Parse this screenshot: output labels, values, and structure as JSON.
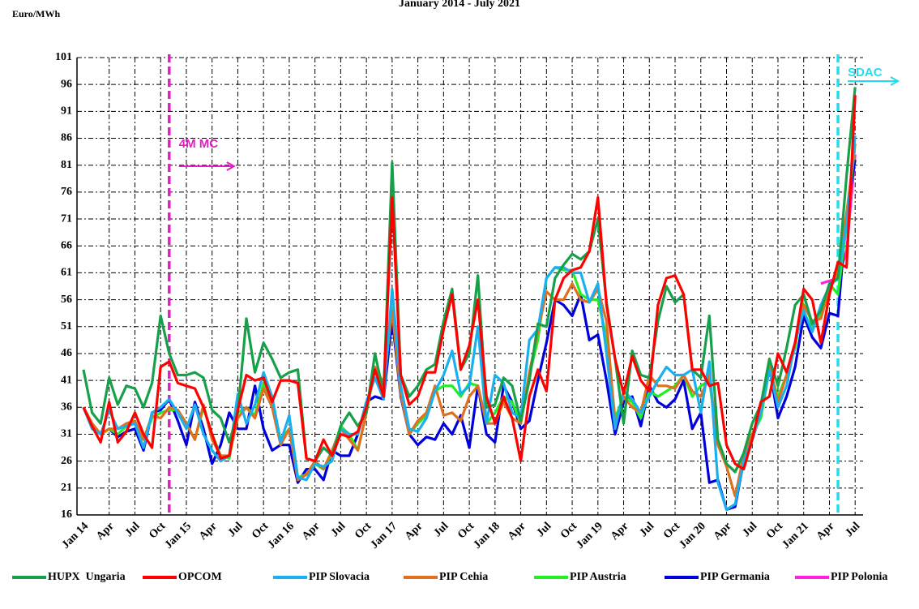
{
  "chart_data": {
    "type": "line",
    "title": "January  2014 - July  2021",
    "y_label": "Euro/MWh",
    "categories": [
      "Jan 14",
      null,
      null,
      "Apr",
      null,
      null,
      "Jul",
      null,
      null,
      "Oct",
      null,
      null,
      "Jan 15",
      null,
      null,
      "Apr",
      null,
      null,
      "Jul",
      null,
      null,
      "Oct",
      null,
      null,
      "Jan 16",
      null,
      null,
      "Apr",
      null,
      null,
      "Jul",
      null,
      null,
      "Oct",
      null,
      null,
      "Jan 17",
      null,
      null,
      "Apr",
      null,
      null,
      "Jul",
      null,
      null,
      "Oct",
      null,
      null,
      "Jan 18",
      null,
      null,
      "Apr",
      null,
      null,
      "Jul",
      null,
      null,
      "Oct",
      null,
      null,
      "Jan 19",
      null,
      null,
      "Apr",
      null,
      null,
      "Jul",
      null,
      null,
      "Oct",
      null,
      null,
      "Jan 20",
      null,
      null,
      "Apr",
      null,
      null,
      "Jul",
      null,
      null,
      "Oct",
      null,
      null,
      "Jan 21",
      null,
      null,
      "Apr",
      null,
      null,
      "Jul"
    ],
    "series": [
      {
        "name": "HUPX  Ungaria",
        "color": "#17a04a",
        "values": [
          43,
          35,
          33,
          41.5,
          36.5,
          40,
          39.5,
          36,
          40.5,
          53,
          46,
          42,
          42,
          42.5,
          41.5,
          35.5,
          34,
          29.5,
          35,
          52.5,
          42.5,
          48,
          45,
          41.5,
          42.5,
          43,
          26.5,
          26,
          28.5,
          27,
          32.5,
          35,
          32.5,
          35,
          46,
          38.5,
          81.5,
          42,
          38,
          40,
          43,
          44,
          52,
          58,
          43,
          46,
          60.5,
          36,
          36.5,
          41.5,
          40,
          33.5,
          41,
          51.5,
          51,
          60,
          62.5,
          64.5,
          63.5,
          65,
          71,
          55.5,
          45,
          33,
          46.5,
          42,
          41.5,
          52,
          58.5,
          55.5,
          57,
          43,
          41.5,
          53,
          30,
          25.5,
          24,
          27.5,
          33,
          36.5,
          45,
          40,
          47,
          55,
          57,
          51.5,
          54,
          59,
          60,
          79,
          95.5
        ]
      },
      {
        "name": "OPCOM",
        "color": "#ff0000",
        "values": [
          36,
          32.5,
          29.5,
          37,
          29.5,
          31.5,
          35,
          31,
          28.5,
          43.5,
          44.5,
          40.5,
          40,
          39.5,
          36,
          31,
          26.5,
          27,
          35.5,
          42,
          41,
          41.5,
          37,
          41,
          41,
          40.5,
          26.5,
          26,
          30,
          27,
          31,
          30.5,
          31.5,
          36,
          43,
          38,
          75,
          42,
          36.5,
          38,
          42.5,
          42.5,
          50.5,
          57,
          43,
          47.5,
          56,
          38,
          33,
          38,
          34,
          26,
          38,
          43,
          39,
          56,
          60,
          61.5,
          62,
          65,
          75,
          55,
          45,
          38.5,
          45.5,
          41,
          39,
          55,
          60,
          60.5,
          57,
          43,
          43,
          40,
          40.5,
          29,
          25.5,
          24.5,
          30,
          37,
          38,
          46,
          42.5,
          48,
          58,
          56,
          48,
          57,
          63,
          62,
          94
        ]
      },
      {
        "name": "PIP Slovacia",
        "color": "#1ab0ee",
        "values": [
          36,
          32,
          31,
          35.5,
          32,
          32.5,
          33,
          28.5,
          35,
          36,
          37.5,
          35,
          32,
          36.5,
          31,
          28,
          26,
          27,
          38.5,
          33,
          36.5,
          42.5,
          38,
          29.5,
          34.5,
          23,
          22.5,
          25.5,
          25,
          26,
          32,
          31,
          31,
          37,
          41.5,
          37.5,
          58,
          40,
          32,
          31.5,
          34,
          39,
          42,
          46.5,
          38.5,
          40,
          51,
          33,
          42,
          40.5,
          35,
          34,
          48.5,
          50.5,
          60,
          62,
          62,
          61,
          61,
          55.5,
          59,
          46,
          32,
          39,
          37.5,
          35,
          38,
          41,
          43.5,
          42,
          42,
          43,
          35,
          44.5,
          22,
          17,
          18,
          26,
          30,
          35,
          43,
          36,
          40,
          48,
          54,
          50,
          55,
          58.5,
          60,
          70,
          86.5
        ]
      },
      {
        "name": "PIP Cehia",
        "color": "#e07020",
        "values": [
          36,
          33,
          31,
          32,
          32,
          33,
          33.5,
          30,
          34.5,
          34,
          36,
          35.5,
          33,
          30,
          36.5,
          30,
          27,
          27,
          34,
          36,
          34,
          39.5,
          36,
          29,
          32,
          22.5,
          23.5,
          26,
          24.5,
          28,
          32,
          30,
          28,
          35,
          43.5,
          40.5,
          54,
          38.5,
          31,
          33.5,
          35,
          40,
          34.5,
          35,
          33.5,
          38,
          40,
          33,
          33,
          37,
          34,
          33,
          42.5,
          50,
          57.5,
          56,
          56,
          59,
          56,
          55.5,
          58,
          52,
          33,
          38,
          36,
          35,
          42,
          40,
          40,
          39.5,
          42,
          39,
          38,
          42,
          29,
          25,
          19.5,
          27,
          31,
          35,
          44,
          37,
          42,
          48,
          55,
          52,
          52.5,
          58,
          61,
          72,
          85
        ]
      },
      {
        "name": "PIP Austria",
        "color": "#22ee22",
        "values": [
          36,
          33,
          31,
          32,
          31,
          32.5,
          33,
          30,
          34,
          35,
          35.5,
          35.5,
          33,
          30,
          36,
          31,
          27,
          26.5,
          35,
          36,
          34.5,
          40.5,
          37,
          30,
          32,
          23,
          23.5,
          25.5,
          24.5,
          27.5,
          32.5,
          31,
          28,
          35,
          43,
          40,
          54.5,
          38.5,
          31,
          33,
          34.5,
          39,
          40,
          40,
          38,
          40.5,
          40,
          33,
          35,
          38,
          37,
          33,
          42,
          48.5,
          60,
          62,
          61.5,
          61.5,
          57,
          56,
          56,
          49,
          34,
          38,
          37,
          34,
          39,
          38,
          39,
          40,
          42,
          38,
          40,
          41,
          29,
          25.5,
          24,
          27,
          31,
          34,
          43,
          38,
          42,
          47,
          57,
          51,
          53,
          59,
          57,
          70,
          85
        ]
      },
      {
        "name": "PIP Germania",
        "color": "#0000dd",
        "values": [
          36,
          33,
          31,
          32,
          30.5,
          31.5,
          32,
          28,
          35,
          35.5,
          37.5,
          33.5,
          29,
          37,
          32,
          25.5,
          29,
          35,
          32,
          32,
          40,
          32,
          28,
          29,
          29,
          22,
          24.5,
          24.5,
          22.5,
          28,
          27,
          27,
          31,
          37,
          38,
          37.5,
          52.5,
          38,
          31,
          29,
          30.5,
          30,
          33,
          31,
          34.5,
          28.5,
          40,
          31,
          29.5,
          40,
          37,
          32,
          33.5,
          41,
          48,
          56,
          55,
          53,
          57,
          48.5,
          49.5,
          41,
          31,
          37,
          38,
          32.5,
          40,
          37,
          36,
          37.5,
          41,
          32,
          35,
          22,
          22.5,
          17,
          17.5,
          26,
          30,
          35,
          43.5,
          34,
          38,
          43.5,
          53,
          49,
          47,
          53.5,
          53,
          72,
          82
        ]
      },
      {
        "name": "PIP Polonia",
        "color": "#ff22dd",
        "values": [
          null,
          null,
          null,
          null,
          null,
          null,
          null,
          null,
          null,
          null,
          null,
          null,
          null,
          null,
          null,
          null,
          null,
          null,
          null,
          null,
          null,
          null,
          null,
          null,
          null,
          null,
          null,
          null,
          null,
          null,
          null,
          null,
          null,
          null,
          null,
          null,
          null,
          null,
          null,
          null,
          null,
          null,
          null,
          null,
          null,
          null,
          null,
          null,
          null,
          null,
          null,
          null,
          null,
          null,
          null,
          null,
          null,
          null,
          null,
          null,
          null,
          null,
          null,
          null,
          null,
          null,
          null,
          null,
          null,
          null,
          null,
          null,
          null,
          null,
          null,
          null,
          null,
          null,
          null,
          null,
          null,
          null,
          null,
          null,
          null,
          null,
          59,
          59.5,
          60,
          65,
          83
        ]
      }
    ],
    "ylim": [
      16,
      101
    ],
    "yticks": [
      16,
      21,
      26,
      31,
      36,
      41,
      46,
      51,
      56,
      61,
      66,
      71,
      76,
      81,
      86,
      91,
      96,
      101
    ],
    "grid": true,
    "legend": "bottom",
    "annotations": [
      {
        "text": "4M MC",
        "at": 10,
        "color": "#e020c0"
      },
      {
        "text": "SDAC",
        "at": 88,
        "color": "#22ddee"
      }
    ]
  }
}
